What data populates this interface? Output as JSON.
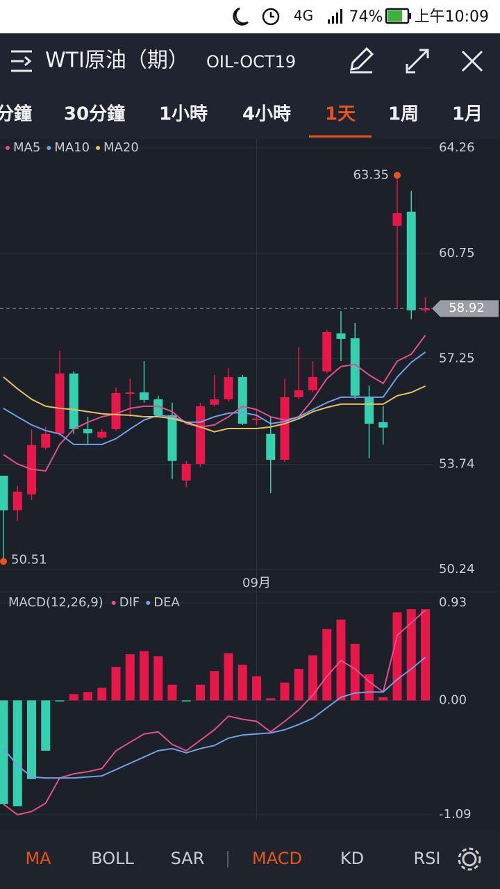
{
  "status_bar": {
    "network": "4G",
    "battery": "74%",
    "time": "上午10:09"
  },
  "header": {
    "title": "WTI原油（期）",
    "code": "OIL-OCT19"
  },
  "timeframe_tabs": {
    "items": [
      "分鐘",
      "30分鐘",
      "1小時",
      "4小時",
      "1天",
      "1周",
      "1月"
    ],
    "active": 4
  },
  "indicator_tabs": {
    "items": [
      "MA",
      "BOLL",
      "SAR",
      "MACD",
      "KD",
      "RSI"
    ],
    "active": [
      0,
      3
    ]
  },
  "chart_data": [
    {
      "type": "candlestick",
      "up_color": "#e8174a",
      "down_color": "#35d0b0",
      "categories": [
        null,
        null,
        null,
        null,
        null,
        null,
        null,
        null,
        null,
        null,
        null,
        null,
        null,
        null,
        null,
        null,
        null,
        null,
        "09月",
        null,
        null,
        null,
        null,
        null,
        null,
        null,
        null,
        null,
        null,
        null,
        null
      ],
      "open": [
        53.36,
        52.21,
        52.74,
        54.29,
        54.75,
        56.76,
        54.91,
        54.63,
        54.91,
        56.09,
        56.13,
        55.9,
        55.37,
        53.2,
        53.75,
        55.72,
        55.9,
        56.64,
        55.21,
        54.75,
        53.89,
        55.97,
        56.2,
        56.83,
        58.09,
        57.93,
        55.97,
        55.14,
        61.67,
        62.14,
        58.86
      ],
      "high": [
        53.36,
        53.02,
        54.91,
        54.98,
        57.52,
        56.83,
        55.32,
        54.91,
        56.29,
        56.59,
        57.17,
        56.02,
        55.79,
        53.85,
        55.79,
        56.71,
        56.94,
        56.71,
        55.56,
        55.32,
        56.59,
        57.63,
        57.17,
        58.21,
        58.83,
        58.44,
        56.36,
        55.67,
        63.35,
        62.83,
        59.3
      ],
      "low": [
        50.51,
        51.86,
        52.55,
        54.22,
        54.68,
        54.75,
        54.4,
        54.59,
        54.86,
        55.32,
        55.79,
        55.32,
        53.25,
        52.97,
        53.66,
        55.67,
        55.83,
        55.05,
        55.05,
        52.78,
        53.82,
        55.9,
        56.13,
        56.76,
        57.17,
        55.9,
        53.94,
        54.4,
        58.9,
        58.56,
        58.79
      ],
      "close": [
        52.21,
        52.83,
        54.38,
        54.75,
        56.76,
        54.91,
        54.77,
        54.82,
        56.11,
        56.13,
        55.88,
        55.37,
        53.85,
        53.75,
        55.67,
        55.9,
        56.64,
        55.09,
        55.26,
        53.89,
        55.97,
        56.2,
        56.64,
        58.14,
        57.91,
        56.02,
        55.09,
        54.96,
        62.09,
        58.86,
        58.92
      ],
      "series": [
        {
          "name": "MA5",
          "color": "#e0508a",
          "values": [
            54.06,
            53.75,
            53.57,
            53.52,
            54.4,
            54.91,
            55.14,
            55.32,
            55.42,
            55.6,
            55.67,
            55.67,
            55.49,
            55.09,
            54.98,
            55.05,
            55.32,
            55.67,
            55.56,
            55.32,
            55.21,
            55.32,
            55.9,
            56.59,
            56.99,
            57.06,
            56.71,
            56.43,
            57.17,
            57.4,
            58.03
          ]
        },
        {
          "name": "MA10",
          "color": "#6fa0e8",
          "values": [
            55.6,
            55.32,
            55.05,
            54.86,
            54.75,
            54.4,
            54.4,
            54.4,
            54.59,
            54.91,
            55.21,
            55.37,
            55.32,
            55.14,
            55.14,
            55.32,
            55.44,
            55.46,
            55.37,
            55.09,
            55.16,
            55.32,
            55.56,
            55.79,
            55.97,
            55.97,
            55.97,
            55.97,
            56.64,
            57.13,
            57.47
          ]
        },
        {
          "name": "MA20",
          "color": "#e8c060",
          "values": [
            56.64,
            56.25,
            55.9,
            55.67,
            55.6,
            55.56,
            55.49,
            55.42,
            55.39,
            55.37,
            55.32,
            55.32,
            55.26,
            55.14,
            54.98,
            54.82,
            54.93,
            54.93,
            54.93,
            54.98,
            55.09,
            55.26,
            55.49,
            55.63,
            55.74,
            55.74,
            55.74,
            55.74,
            56.02,
            56.13,
            56.34
          ]
        }
      ],
      "ylim": [
        50.24,
        64.26
      ],
      "yticks": [
        64.26,
        60.75,
        57.25,
        53.74,
        50.24
      ],
      "grid": true
    },
    {
      "type": "macd",
      "title": "MACD(12,26,9)",
      "up_color": "#e8174a",
      "down_color": "#35d0b0",
      "histogram": [
        -0.99,
        -1.01,
        -0.75,
        -0.48,
        -0.01,
        0.06,
        0.08,
        0.12,
        0.32,
        0.44,
        0.47,
        0.42,
        0.15,
        -0.01,
        0.15,
        0.28,
        0.45,
        0.34,
        0.23,
        0.02,
        0.17,
        0.3,
        0.43,
        0.68,
        0.77,
        0.54,
        0.25,
        0.03,
        0.84,
        0.87,
        0.87
      ],
      "series": [
        {
          "name": "DIF",
          "color": "#e0508a",
          "values": [
            -0.99,
            -1.09,
            -1.06,
            -0.98,
            -0.74,
            -0.7,
            -0.68,
            -0.65,
            -0.48,
            -0.4,
            -0.32,
            -0.3,
            -0.42,
            -0.48,
            -0.38,
            -0.28,
            -0.15,
            -0.18,
            -0.2,
            -0.3,
            -0.2,
            -0.09,
            0.05,
            0.23,
            0.38,
            0.3,
            0.18,
            0.08,
            0.62,
            0.74,
            0.86
          ]
        },
        {
          "name": "DEA",
          "color": "#6fa0e8",
          "values": [
            -0.46,
            -0.62,
            -0.73,
            -0.74,
            -0.74,
            -0.74,
            -0.73,
            -0.72,
            -0.66,
            -0.6,
            -0.54,
            -0.48,
            -0.46,
            -0.5,
            -0.46,
            -0.43,
            -0.36,
            -0.33,
            -0.32,
            -0.31,
            -0.28,
            -0.23,
            -0.17,
            -0.07,
            0.03,
            0.07,
            0.08,
            0.08,
            0.2,
            0.3,
            0.41
          ]
        }
      ],
      "ylim": [
        -1.09,
        0.93
      ],
      "yticks": [
        0.93,
        {
          "value": 0,
          "label": "0.00"
        },
        -1.09
      ],
      "grid": true
    }
  ]
}
